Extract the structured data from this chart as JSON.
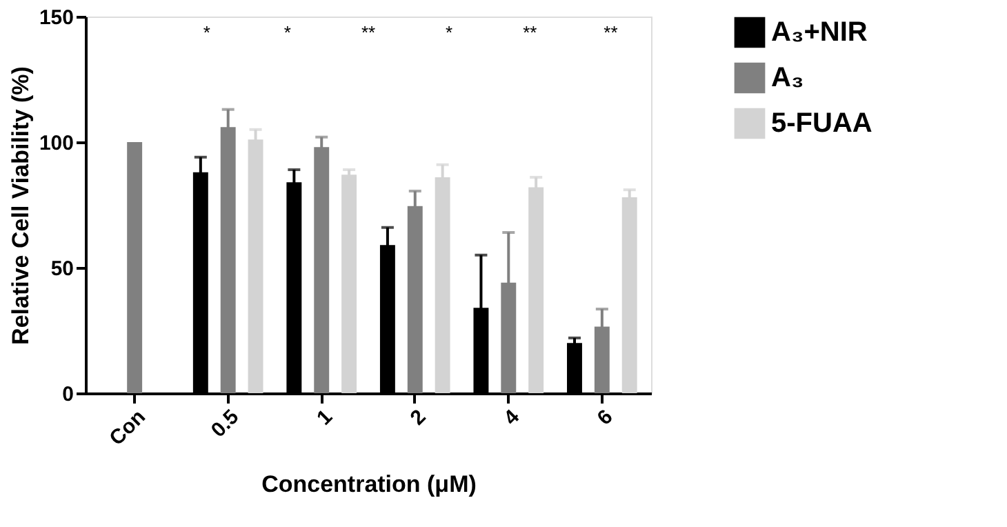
{
  "chart_data": {
    "type": "bar",
    "xlabel": "Concentration (μM)",
    "ylabel": "Relative Cell Viability (%)",
    "categories": [
      "Con",
      "0.5",
      "1",
      "2",
      "4",
      "6"
    ],
    "series": [
      {
        "name": "A₃+NIR",
        "color": "#000000",
        "values": [
          null,
          88,
          84,
          59,
          34,
          20
        ],
        "errors": [
          null,
          6,
          5,
          7,
          21,
          2
        ]
      },
      {
        "name": "A₃",
        "color": "#808080",
        "values": [
          100,
          106,
          98,
          74.5,
          44,
          26.5
        ],
        "errors": [
          null,
          7,
          4,
          6,
          20,
          7
        ]
      },
      {
        "name": "5-FUAA",
        "color": "#d3d3d3",
        "values": [
          null,
          101,
          87,
          86,
          82,
          78
        ],
        "errors": [
          null,
          4,
          2,
          5,
          4,
          3
        ]
      }
    ],
    "ylim": [
      0,
      150
    ],
    "yticks": [
      0,
      50,
      100,
      150
    ],
    "grid": false,
    "legend": "top right",
    "annotations": [
      "*",
      "*",
      "**",
      "*",
      "**",
      "**"
    ]
  }
}
